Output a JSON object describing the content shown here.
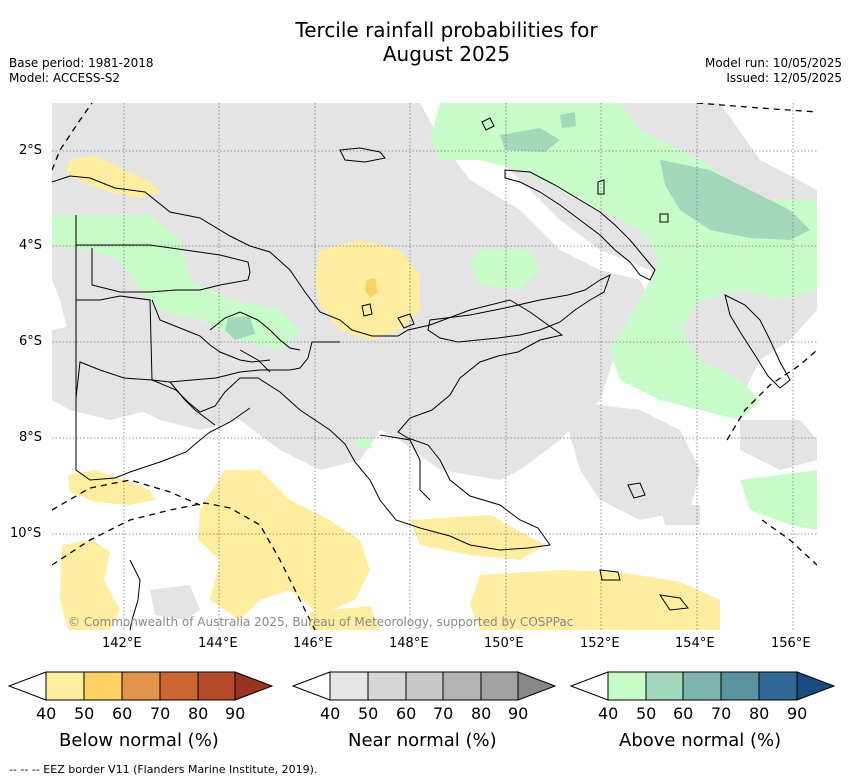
{
  "title": {
    "line1": "Tercile rainfall probabilities for",
    "line2": "August 2025"
  },
  "meta": {
    "base_period": "Base period: 1981-2018",
    "model": "Model: ACCESS-S2",
    "model_run": "Model run: 10/05/2025",
    "issued": "Issued: 12/05/2025"
  },
  "map": {
    "credit": "© Commonwealth of Australia 2025, Bureau of Meteorology, supported by COSPPac",
    "lat_labels": [
      "2°S",
      "4°S",
      "6°S",
      "8°S",
      "10°S"
    ],
    "lon_labels": [
      "142°E",
      "144°E",
      "146°E",
      "148°E",
      "150°E",
      "152°E",
      "154°E",
      "156°E"
    ]
  },
  "colorbars": [
    {
      "label": "Below normal (%)",
      "ticks": [
        "40",
        "50",
        "60",
        "70",
        "80",
        "90"
      ],
      "colors": [
        "#ffeda0",
        "#fed166",
        "#e0954a",
        "#cc6633",
        "#b44a28",
        "#993322"
      ]
    },
    {
      "label": "Near normal (%)",
      "ticks": [
        "40",
        "50",
        "60",
        "70",
        "80",
        "90"
      ],
      "colors": [
        "#e6e6e6",
        "#d6d6d6",
        "#c8c8c8",
        "#b4b4b4",
        "#a2a2a2",
        "#888888"
      ]
    },
    {
      "label": "Above normal (%)",
      "ticks": [
        "40",
        "50",
        "60",
        "70",
        "80",
        "90"
      ],
      "colors": [
        "#c8fcc8",
        "#a4d8bc",
        "#80b4ae",
        "#5a92a0",
        "#326896",
        "#1a4a80"
      ]
    }
  ],
  "footer": {
    "eez_note": "--  --  -- EEZ border V11 (Flanders Marine Institute, 2019)."
  }
}
